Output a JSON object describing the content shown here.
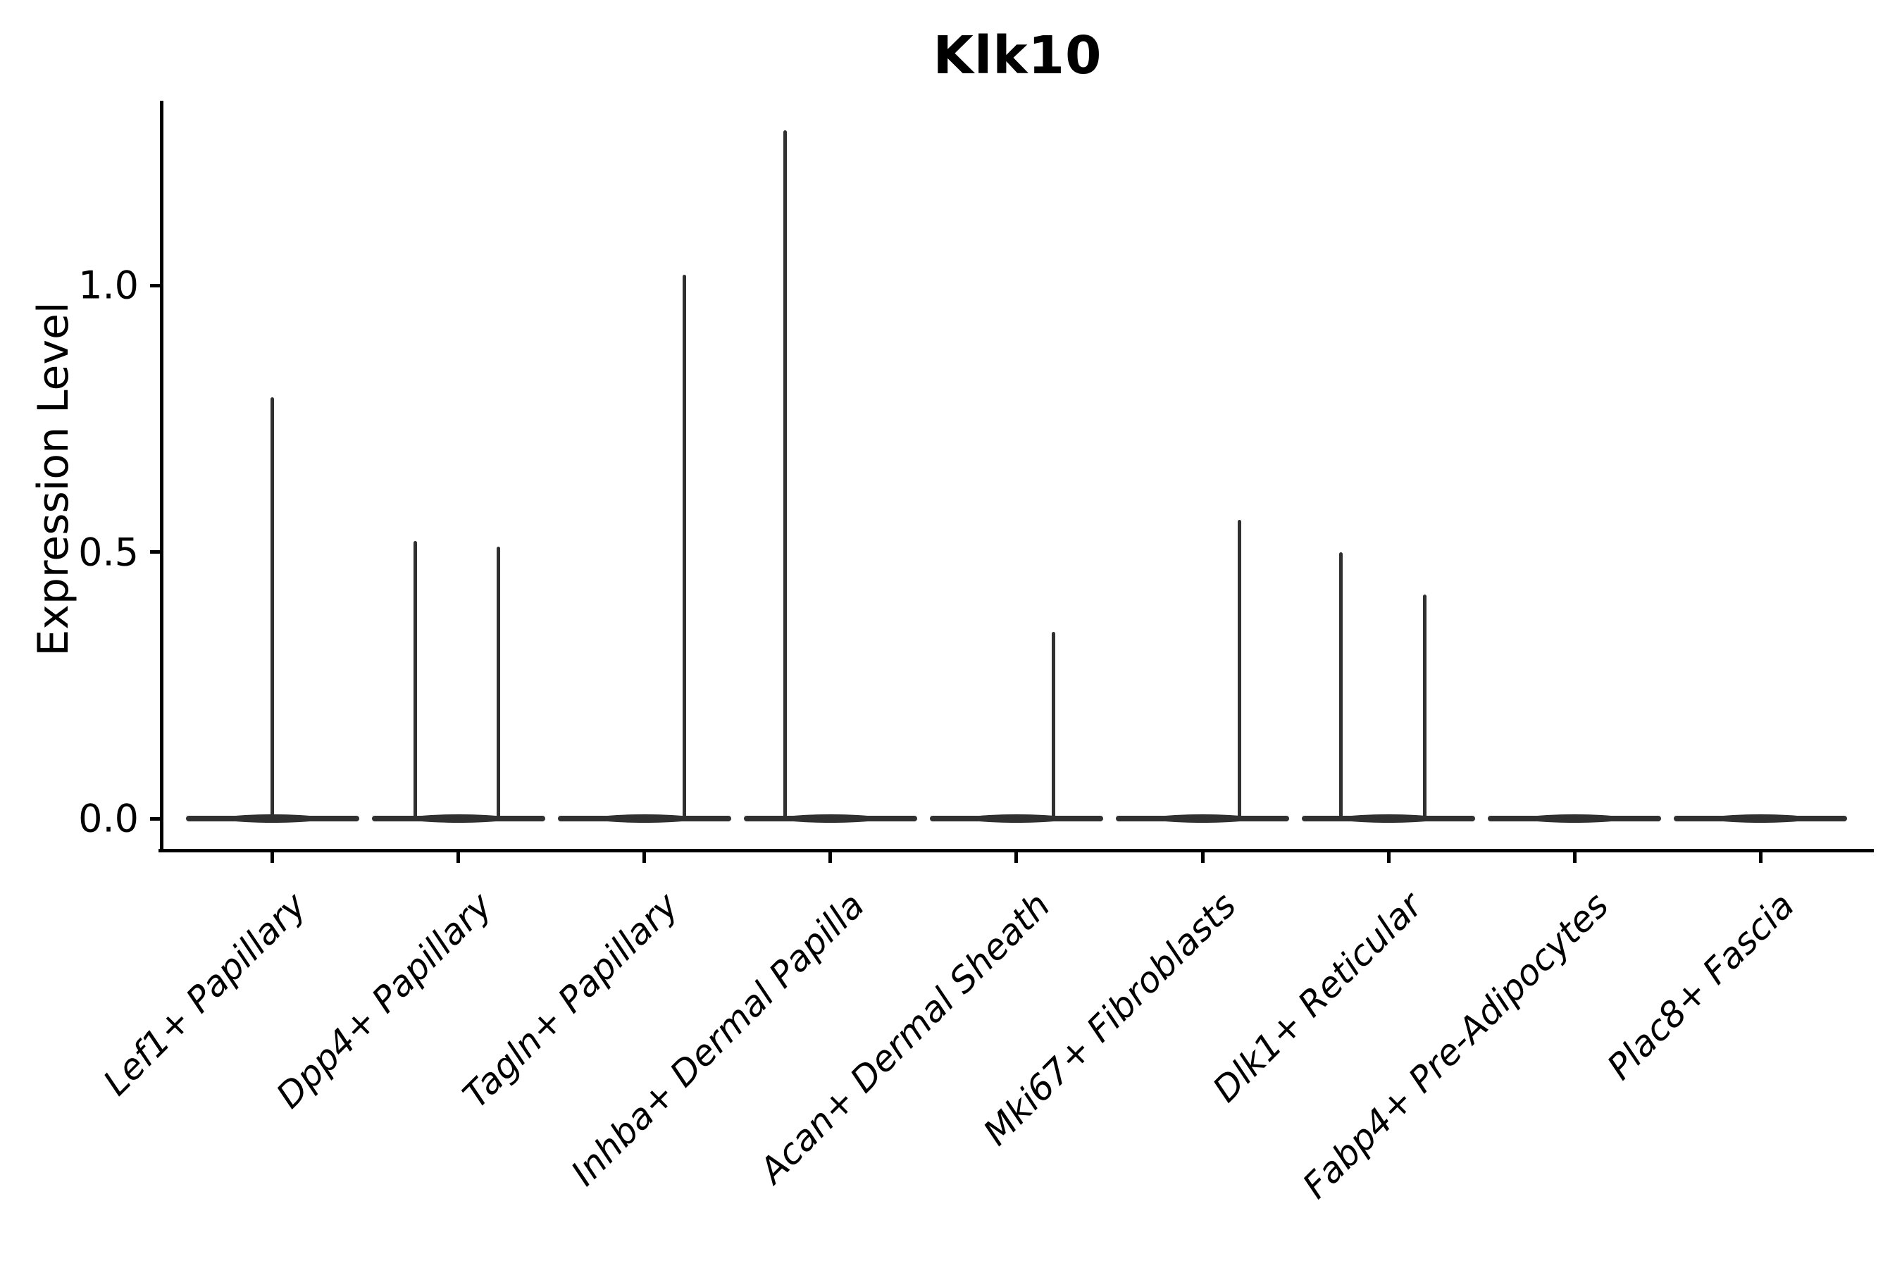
{
  "title": "Klk10",
  "ylabel": "Expression Level",
  "chart_data": {
    "type": "violin",
    "title": "Klk10",
    "xlabel": "",
    "ylabel": "Expression Level",
    "grid": false,
    "legend": false,
    "ylim": [
      -0.06,
      1.34
    ],
    "ytick_labels": [
      "0.0",
      "0.5",
      "1.0"
    ],
    "ytick_values": [
      0.0,
      0.5,
      1.0
    ],
    "categories": [
      "Lef1+ Papillary",
      "Dpp4+ Papillary",
      "Tagln+ Papillary",
      "Inhba+ Dermal Papilla",
      "Acan+ Dermal Sheath",
      "Mki67+ Fibroblasts",
      "Dlk1+ Reticular",
      "Fabp4+ Pre-Adipocytes",
      "Plac8+ Fascia"
    ],
    "series": [
      {
        "name": "Lef1+ Papillary",
        "baseline": 0.0,
        "spikes": [
          {
            "pos": 0.0,
            "max": 0.79
          }
        ]
      },
      {
        "name": "Dpp4+ Papillary",
        "baseline": 0.0,
        "spikes": [
          {
            "pos": -0.5,
            "max": 0.52
          },
          {
            "pos": 0.46,
            "max": 0.51
          }
        ]
      },
      {
        "name": "Tagln+ Papillary",
        "baseline": 0.0,
        "spikes": [
          {
            "pos": 0.46,
            "max": 1.02
          }
        ]
      },
      {
        "name": "Inhba+ Dermal Papilla",
        "baseline": 0.0,
        "spikes": [
          {
            "pos": -0.52,
            "max": 1.29
          }
        ]
      },
      {
        "name": "Acan+ Dermal Sheath",
        "baseline": 0.0,
        "spikes": [
          {
            "pos": 0.43,
            "max": 0.35
          }
        ]
      },
      {
        "name": "Mki67+ Fibroblasts",
        "baseline": 0.0,
        "spikes": [
          {
            "pos": 0.43,
            "max": 0.56
          }
        ]
      },
      {
        "name": "Dlk1+ Reticular",
        "baseline": 0.0,
        "spikes": [
          {
            "pos": -0.55,
            "max": 0.5
          },
          {
            "pos": 0.42,
            "max": 0.42
          }
        ]
      },
      {
        "name": "Fabp4+ Pre-Adipocytes",
        "baseline": 0.0,
        "spikes": []
      },
      {
        "name": "Plac8+ Fascia",
        "baseline": 0.0,
        "spikes": []
      }
    ],
    "colors": {
      "violin": "#303030",
      "axis": "#000000",
      "text": "#000000"
    }
  }
}
